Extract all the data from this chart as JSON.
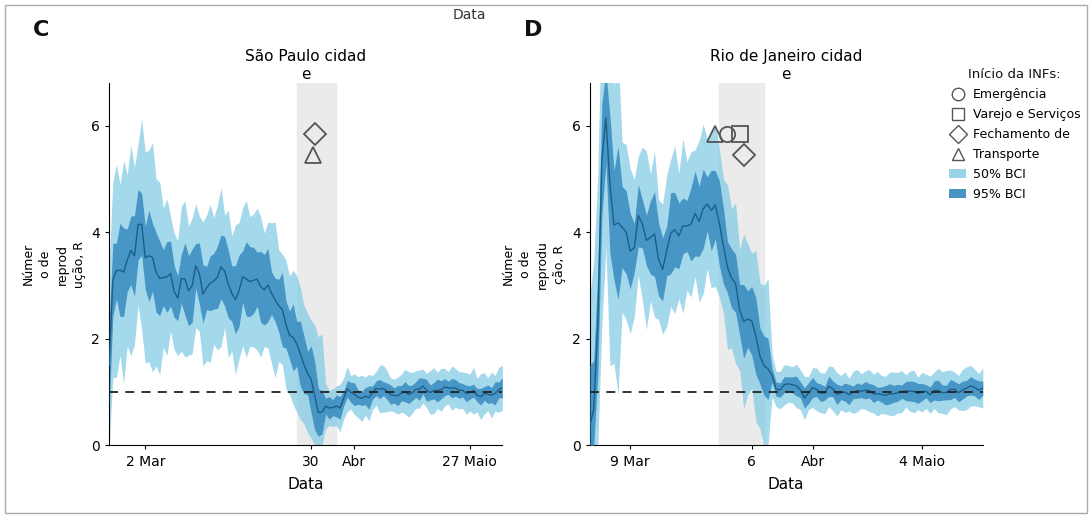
{
  "panel_C": {
    "title": "São Paulo cidad\ne",
    "xlabel": "Data",
    "ylabel": "Númer\no de\nreprod\nução, R",
    "label": "C",
    "xtick_labels": [
      "2 Mar",
      "30",
      "Abr",
      "27 Maio"
    ],
    "xtick_positions": [
      10,
      56,
      68,
      100
    ],
    "ytick_labels": [
      "0",
      "2",
      "4",
      "6"
    ],
    "ytick_positions": [
      0,
      2,
      4,
      6
    ],
    "ylim": [
      0,
      6.8
    ],
    "dashed_y": 1.0,
    "shaded_region_start": 52,
    "shaded_region_end": 63,
    "symbol_x_tri": 56,
    "symbol_x_dia": 58,
    "symbol_y_dia": 5.9,
    "symbol_y_tri": 5.5,
    "n_points": 110
  },
  "panel_D": {
    "title": "Rio de Janeiro cidad\ne",
    "xlabel": "Data",
    "ylabel": "Númer\no de\nreprodu\nção, R",
    "label": "D",
    "xtick_labels": [
      "9 Mar",
      "6",
      "Abr",
      "4 Maio"
    ],
    "xtick_positions": [
      10,
      40,
      55,
      82
    ],
    "ytick_labels": [
      "0",
      "2",
      "4",
      "6"
    ],
    "ytick_positions": [
      0,
      2,
      4,
      6
    ],
    "ylim": [
      0,
      6.8
    ],
    "dashed_y": 1.0,
    "shaded_region_start": 32,
    "shaded_region_end": 43,
    "symbol_x_tri": 30,
    "symbol_x_circle": 33,
    "symbol_x_square": 36,
    "symbol_x_dia": 39,
    "symbol_y_top": 5.9,
    "symbol_y_bot": 5.4,
    "n_points": 98
  },
  "colors": {
    "ci95_outer": "#7ec8e3",
    "ci50_inner": "#2980b9",
    "shade": "#dddddd",
    "dashed": "#222222",
    "symbol": "#555555"
  },
  "legend_title": "Início da INFs:",
  "legend_items": [
    "Emergência",
    "Varejo e Serviços",
    "Fechamento de",
    "Transporte",
    "50% BCI",
    "95% BCI"
  ],
  "top_xlabel": "Data",
  "background": "#ffffff",
  "border_color": "#aaaaaa"
}
